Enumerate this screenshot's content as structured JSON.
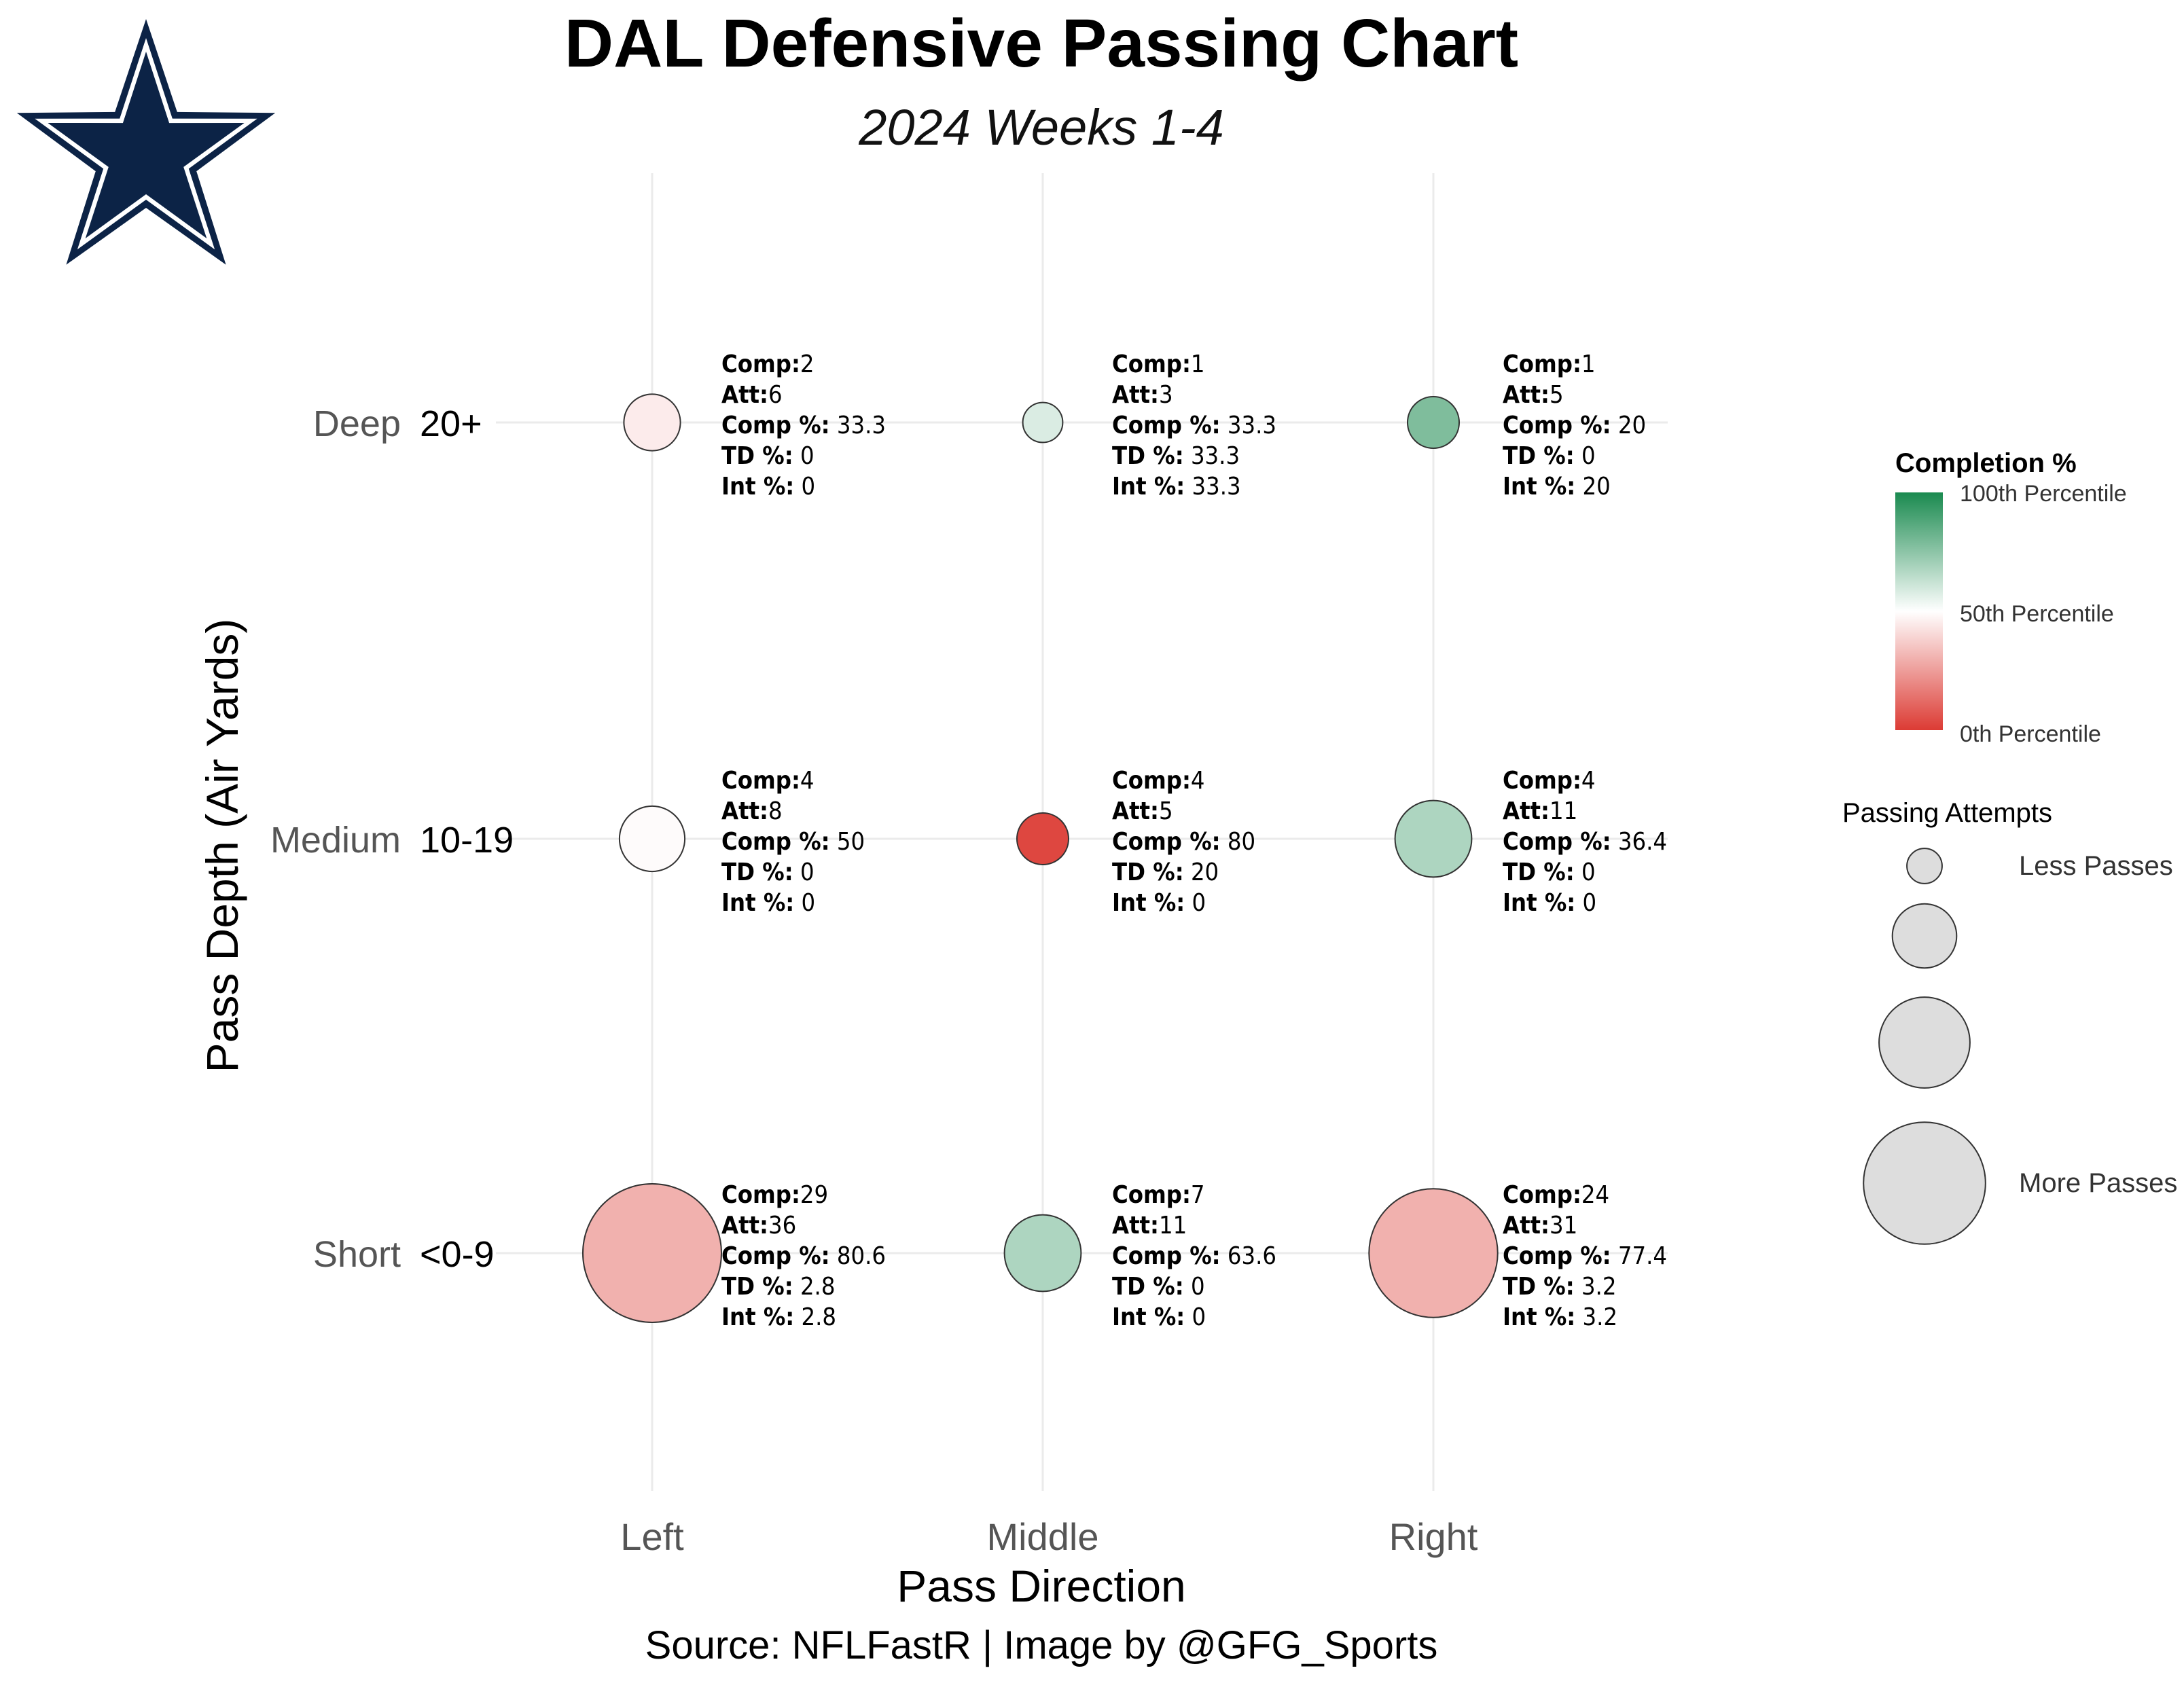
{
  "title": "DAL Defensive Passing Chart",
  "subtitle": "2024 Weeks 1-4",
  "logo": "dallas-cowboys-star",
  "colors": {
    "logo_navy": "#0c2346",
    "low": "#dc3b34",
    "mid": "#ffffff",
    "high": "#1a8a4f"
  },
  "chart_data": {
    "type": "scatter",
    "xlabel": "Pass Direction",
    "ylabel": "Pass Depth (Air Yards)",
    "x_categories": [
      "Left",
      "Middle",
      "Right"
    ],
    "y_categories": [
      {
        "name": "Deep",
        "range": "20+"
      },
      {
        "name": "Medium",
        "range": "10-19"
      },
      {
        "name": "Short",
        "range": "<0-9"
      }
    ],
    "annotation_labels": {
      "comp": "Comp:",
      "att": "Att:",
      "comp_pct": "Comp %:",
      "td_pct": "TD %:",
      "int_pct": "Int %:"
    },
    "points": [
      {
        "direction": "Left",
        "depth": "Deep",
        "comp": "2",
        "att": "6",
        "comp_pct": "33.3",
        "td_pct": "0",
        "int_pct": "0",
        "percentile": 0.45
      },
      {
        "direction": "Middle",
        "depth": "Deep",
        "comp": "1",
        "att": "3",
        "comp_pct": "33.3",
        "td_pct": "33.3",
        "int_pct": "33.3",
        "percentile": 0.58
      },
      {
        "direction": "Right",
        "depth": "Deep",
        "comp": "1",
        "att": "5",
        "comp_pct": "20",
        "td_pct": "0",
        "int_pct": "20",
        "percentile": 0.78
      },
      {
        "direction": "Left",
        "depth": "Medium",
        "comp": "4",
        "att": "8",
        "comp_pct": "50",
        "td_pct": "0",
        "int_pct": "0",
        "percentile": 0.49
      },
      {
        "direction": "Middle",
        "depth": "Medium",
        "comp": "4",
        "att": "5",
        "comp_pct": "80",
        "td_pct": "20",
        "int_pct": "0",
        "percentile": 0.03
      },
      {
        "direction": "Right",
        "depth": "Medium",
        "comp": "4",
        "att": "11",
        "comp_pct": "36.4",
        "td_pct": "0",
        "int_pct": "0",
        "percentile": 0.68
      },
      {
        "direction": "Left",
        "depth": "Short",
        "comp": "29",
        "att": "36",
        "comp_pct": "80.6",
        "td_pct": "2.8",
        "int_pct": "2.8",
        "percentile": 0.3
      },
      {
        "direction": "Middle",
        "depth": "Short",
        "comp": "7",
        "att": "11",
        "comp_pct": "63.6",
        "td_pct": "0",
        "int_pct": "0",
        "percentile": 0.68
      },
      {
        "direction": "Right",
        "depth": "Short",
        "comp": "24",
        "att": "31",
        "comp_pct": "77.4",
        "td_pct": "3.2",
        "int_pct": "3.2",
        "percentile": 0.3
      }
    ],
    "legend_color": {
      "title": "Completion %",
      "labels": [
        "100th Percentile",
        "50th Percentile",
        "0th Percentile"
      ]
    },
    "legend_size": {
      "title": "Passing Attempts",
      "keys": [
        3,
        10,
        20,
        36
      ],
      "labels": [
        "Less Passes",
        "",
        "",
        "More Passes"
      ]
    },
    "grid": true
  },
  "source": "Source: NFLFastR | Image by @GFG_Sports"
}
